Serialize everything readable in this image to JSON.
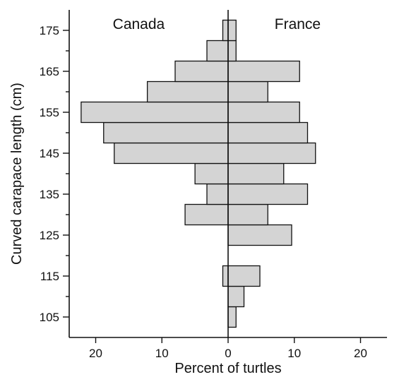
{
  "chart_data": {
    "type": "bar",
    "orientation": "horizontal",
    "layout": "back-to-back",
    "xlabel": "Percent of turtles",
    "ylabel": "Curved carapace length (cm)",
    "xlim": [
      -24,
      24
    ],
    "ylim": [
      100,
      180
    ],
    "x_ticks": [
      -20,
      -10,
      0,
      10,
      20
    ],
    "x_tick_labels": [
      "20",
      "10",
      "0",
      "10",
      "20"
    ],
    "y_ticks": [
      105,
      115,
      125,
      135,
      145,
      155,
      165,
      175
    ],
    "y_tick_labels": [
      "105",
      "115",
      "125",
      "135",
      "145",
      "155",
      "165",
      "175"
    ],
    "y_minor_ticks": [
      110,
      120,
      130,
      140,
      150,
      160,
      170
    ],
    "bin_width": 5,
    "bin_centers": [
      105,
      110,
      115,
      120,
      125,
      130,
      135,
      140,
      145,
      150,
      155,
      160,
      165,
      170,
      175
    ],
    "series": [
      {
        "name": "Canada",
        "direction": "left",
        "values": [
          0,
          0,
          0.8,
          0,
          0,
          6.5,
          3.2,
          5.0,
          17.2,
          18.8,
          22.2,
          12.2,
          8.0,
          3.2,
          0.8
        ]
      },
      {
        "name": "France",
        "direction": "right",
        "values": [
          1.2,
          2.4,
          4.8,
          0,
          9.6,
          6.0,
          12.0,
          8.4,
          13.2,
          12.0,
          10.8,
          6.0,
          10.8,
          1.2,
          1.2
        ]
      }
    ],
    "grid": false,
    "legend": "none"
  }
}
